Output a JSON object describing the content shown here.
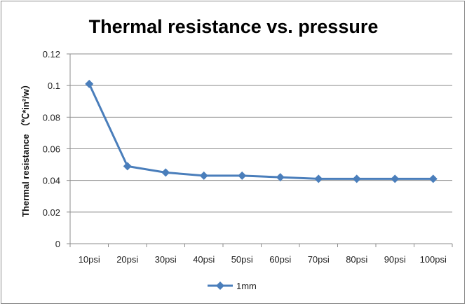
{
  "chart_data": {
    "type": "line",
    "title": "Thermal resistance vs. pressure",
    "xlabel": "",
    "ylabel": "Thermal resistance （℃*in²/w）",
    "categories": [
      "10psi",
      "20psi",
      "30psi",
      "40psi",
      "50psi",
      "60psi",
      "70psi",
      "80psi",
      "90psi",
      "100psi"
    ],
    "series": [
      {
        "name": "1mm",
        "values": [
          0.101,
          0.049,
          0.045,
          0.043,
          0.043,
          0.042,
          0.041,
          0.041,
          0.041,
          0.041
        ],
        "color": "#4a7ebb",
        "marker": "diamond"
      }
    ],
    "ylim": [
      0,
      0.12
    ],
    "yticks": [
      "0",
      "0.02",
      "0.04",
      "0.06",
      "0.08",
      "0.1",
      "0.12"
    ],
    "grid": "horizontal",
    "legend": "bottom"
  }
}
